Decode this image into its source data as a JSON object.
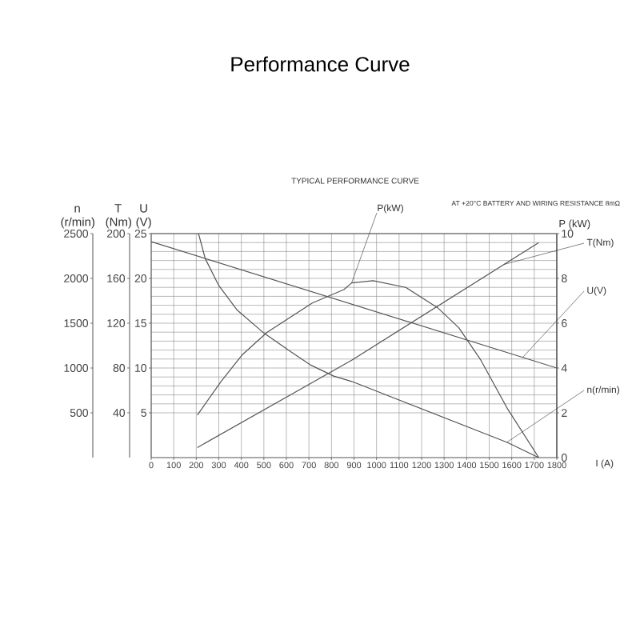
{
  "chart_data": [
    {
      "type": "line",
      "title": "Performance Curve",
      "annotations": [
        "TYPICAL PERFORMANCE CURVE",
        "AT +20°C  BATTERY AND WIRING RESISTANCE 8mΩ"
      ],
      "xlabel": "I (A)",
      "ylabel": "U (V)",
      "y2label": "T (Nm)",
      "y3label": "P (kW)",
      "xlim": [
        0,
        1800
      ],
      "xticks": [
        0,
        100,
        200,
        300,
        400,
        500,
        600,
        700,
        800,
        900,
        1000,
        1100,
        1200,
        1300,
        1400,
        1500,
        1600,
        1700,
        1800
      ],
      "ylim": [
        0,
        25
      ],
      "yticks": [
        5,
        10,
        15,
        20,
        25
      ],
      "y2lim": [
        0,
        200
      ],
      "y2ticks": [
        40,
        80,
        120,
        160,
        200
      ],
      "y3lim": [
        0,
        10
      ],
      "y3ticks": [
        0,
        2,
        4,
        6,
        8,
        10
      ],
      "grid": true,
      "series": [
        {
          "name": "U(V)",
          "color": "#555555",
          "x": [
            0,
            1800
          ],
          "values": [
            24.1,
            10.0
          ]
        },
        {
          "name": "T(Nm)",
          "axis": "y2",
          "color": "#555555",
          "x": [
            205,
            890,
            1720
          ],
          "values": [
            9,
            87,
            192
          ]
        },
        {
          "name": "P(kW)",
          "axis": "y3",
          "color": "#555555",
          "x": [
            205,
            310,
            405,
            515,
            715,
            855,
            890,
            985,
            1130,
            1270,
            1365,
            1460,
            1580,
            1720
          ],
          "values": [
            1.9,
            3.4,
            4.6,
            5.6,
            6.9,
            7.5,
            7.8,
            7.9,
            7.6,
            6.7,
            5.8,
            4.4,
            2.2,
            0
          ]
        }
      ]
    },
    {
      "type": "line",
      "ylabel": "n (r/min)",
      "xlim": [
        0,
        1800
      ],
      "ylim": [
        0,
        2500
      ],
      "yticks": [
        500,
        1000,
        1500,
        2000,
        2500
      ],
      "tick_labels": "y",
      "series": [
        {
          "name": "n(r/min)",
          "color": "#555555",
          "x": [
            210,
            240,
            300,
            380,
            500,
            620,
            710,
            810,
            890,
            1580,
            1720
          ],
          "values": [
            2500,
            2220,
            1920,
            1650,
            1390,
            1180,
            1030,
            910,
            850,
            170,
            0
          ]
        }
      ]
    }
  ]
}
